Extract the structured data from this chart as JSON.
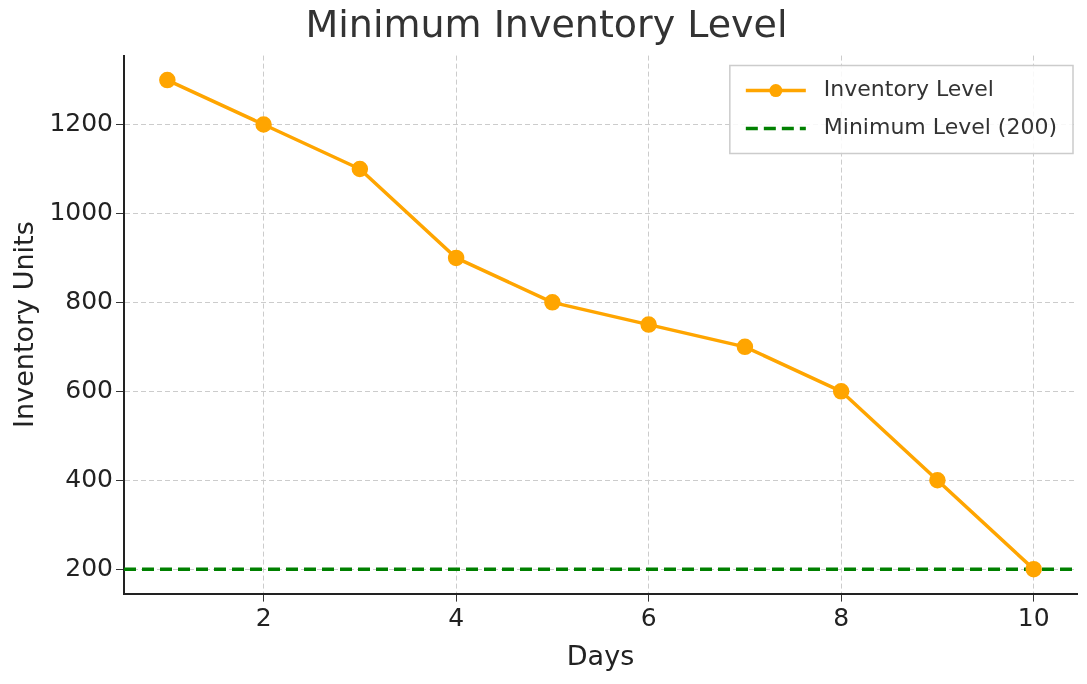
{
  "chart_data": {
    "type": "line",
    "title": "Minimum Inventory Level",
    "xlabel": "Days",
    "ylabel": "Inventory Units",
    "x": [
      1,
      2,
      3,
      4,
      5,
      6,
      7,
      8,
      9,
      10
    ],
    "series": [
      {
        "name": "Inventory Level",
        "color": "#ffa500",
        "values": [
          1300,
          1200,
          1100,
          900,
          800,
          750,
          700,
          600,
          400,
          200
        ]
      }
    ],
    "ref_lines": [
      {
        "axis": "y",
        "value": 200,
        "label": "Minimum Level (200)",
        "color": "#008000",
        "line_style": "dashed"
      }
    ],
    "xlim": [
      0.55,
      10.45
    ],
    "ylim": [
      145,
      1355
    ],
    "xticks": [
      2,
      4,
      6,
      8,
      10
    ],
    "yticks": [
      200,
      400,
      600,
      800,
      1000,
      1200
    ],
    "grid": true,
    "legend": "top right",
    "marker": "circle",
    "line_style": "solid"
  }
}
